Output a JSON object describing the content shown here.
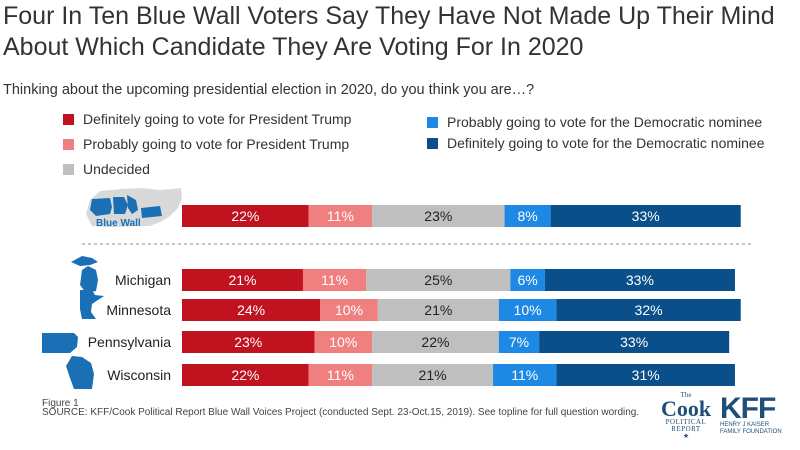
{
  "title": "Four In Ten Blue Wall Voters Say They Have Not Made Up Their Mind About Which Candidate They Are Voting For In 2020",
  "subtitle": "Thinking about the upcoming presidential election in 2020, do you think you are…?",
  "figure_label": "Figure 1",
  "source": "SOURCE: KFF/Cook Political Report Blue Wall Voices Project (conducted Sept. 23-Oct.15, 2019). See topline for full question wording.",
  "logos": {
    "cook": {
      "the": "The",
      "name": "Cook",
      "line1": "POLITICAL",
      "line2": "REPORT",
      "star": "★"
    },
    "kff": {
      "name": "KFF",
      "line1": "HENRY J KAISER",
      "line2": "FAMILY FOUNDATION"
    }
  },
  "colors": {
    "definitely_trump": "#c1121f",
    "probably_trump": "#f08080",
    "undecided": "#bfbfbf",
    "probably_dem": "#1e88e5",
    "definitely_dem": "#0b4f8a",
    "map_blue": "#1a6fb5",
    "map_gray": "#d9d9d9"
  },
  "legend": [
    {
      "key": "definitely_trump",
      "label": "Definitely going to vote for President Trump"
    },
    {
      "key": "probably_trump",
      "label": "Probably going to vote for President Trump"
    },
    {
      "key": "undecided",
      "label": "Undecided"
    },
    {
      "key": "probably_dem",
      "label": "Probably going to vote for the Democratic nominee"
    },
    {
      "key": "definitely_dem",
      "label": "Definitely going to vote for the Democratic nominee"
    }
  ],
  "chart_data": {
    "type": "bar",
    "orientation": "horizontal",
    "stacked": true,
    "categories": [
      "Blue Wall",
      "Michigan",
      "Minnesota",
      "Pennsylvania",
      "Wisconsin"
    ],
    "series": [
      {
        "name": "Definitely going to vote for President Trump",
        "values": [
          22,
          21,
          24,
          23,
          22
        ]
      },
      {
        "name": "Probably going to vote for President Trump",
        "values": [
          11,
          11,
          10,
          10,
          11
        ]
      },
      {
        "name": "Undecided",
        "values": [
          23,
          25,
          21,
          22,
          21
        ]
      },
      {
        "name": "Probably going to vote for the Democratic nominee",
        "values": [
          8,
          6,
          10,
          7,
          11
        ]
      },
      {
        "name": "Definitely going to vote for the Democratic nominee",
        "values": [
          33,
          33,
          32,
          33,
          31
        ]
      }
    ],
    "value_suffix": "%",
    "legend_position": "top",
    "grid": false
  }
}
